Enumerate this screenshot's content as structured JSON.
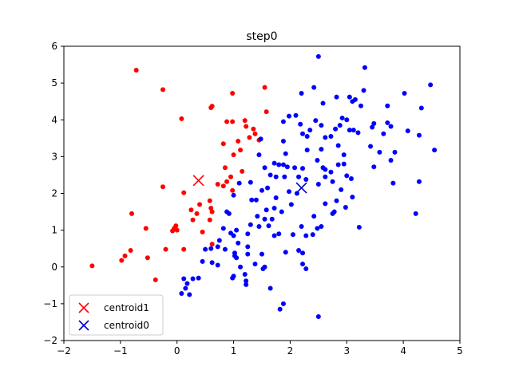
{
  "chart_data": {
    "type": "scatter",
    "title": "step0",
    "xlabel": "",
    "ylabel": "",
    "xlim": [
      -2,
      5
    ],
    "ylim": [
      -2,
      6
    ],
    "xticks": [
      -2,
      -1,
      0,
      1,
      2,
      3,
      4,
      5
    ],
    "yticks": [
      -2,
      -1,
      0,
      1,
      2,
      3,
      4,
      5,
      6
    ],
    "grid": false,
    "legend_position": "lower-left",
    "legend": [
      {
        "label": "centroid1",
        "color": "#ff0000",
        "marker": "x"
      },
      {
        "label": "centroid0",
        "color": "#0000cc",
        "marker": "x"
      }
    ],
    "centroids": [
      {
        "name": "centroid1",
        "x": 0.38,
        "y": 2.35,
        "color": "#ff0000"
      },
      {
        "name": "centroid0",
        "x": 2.2,
        "y": 2.15,
        "color": "#0000cc"
      }
    ],
    "series": [
      {
        "color": "#ff0000",
        "points": [
          [
            -0.72,
            5.35
          ],
          [
            -0.25,
            4.82
          ],
          [
            0.08,
            4.03
          ],
          [
            0.6,
            4.33
          ],
          [
            0.62,
            4.37
          ],
          [
            0.88,
            3.95
          ],
          [
            0.98,
            3.95
          ],
          [
            0.98,
            4.72
          ],
          [
            1.55,
            4.88
          ],
          [
            1.58,
            4.22
          ],
          [
            1.2,
            3.98
          ],
          [
            1.22,
            3.82
          ],
          [
            1.35,
            3.75
          ],
          [
            1.38,
            3.62
          ],
          [
            1.45,
            3.45
          ],
          [
            1.28,
            3.52
          ],
          [
            1.08,
            3.42
          ],
          [
            0.82,
            3.35
          ],
          [
            1.12,
            3.18
          ],
          [
            1.0,
            3.05
          ],
          [
            1.15,
            2.6
          ],
          [
            0.85,
            2.7
          ],
          [
            0.95,
            2.45
          ],
          [
            0.88,
            2.32
          ],
          [
            0.72,
            2.25
          ],
          [
            0.82,
            2.2
          ],
          [
            0.98,
            2.08
          ],
          [
            0.12,
            2.02
          ],
          [
            0.58,
            1.8
          ],
          [
            0.4,
            1.7
          ],
          [
            0.6,
            1.6
          ],
          [
            0.62,
            1.5
          ],
          [
            0.25,
            1.55
          ],
          [
            0.35,
            1.45
          ],
          [
            0.28,
            1.28
          ],
          [
            0.58,
            1.28
          ],
          [
            0.45,
            0.95
          ],
          [
            0.62,
            0.62
          ],
          [
            -0.25,
            2.18
          ],
          [
            -0.8,
            1.45
          ],
          [
            -0.02,
            1.12
          ],
          [
            -0.05,
            1.05
          ],
          [
            0.0,
            1.0
          ],
          [
            -0.08,
            0.98
          ],
          [
            -0.55,
            1.05
          ],
          [
            -0.2,
            0.48
          ],
          [
            -0.82,
            0.45
          ],
          [
            -0.92,
            0.3
          ],
          [
            -0.98,
            0.18
          ],
          [
            -0.52,
            0.25
          ],
          [
            -0.38,
            -0.35
          ],
          [
            -1.5,
            0.03
          ],
          [
            0.12,
            0.48
          ]
        ]
      },
      {
        "color": "#0000ff",
        "points": [
          [
            2.5,
            5.72
          ],
          [
            3.32,
            5.42
          ],
          [
            2.42,
            4.88
          ],
          [
            2.2,
            4.72
          ],
          [
            2.58,
            4.45
          ],
          [
            2.82,
            4.62
          ],
          [
            3.05,
            4.62
          ],
          [
            3.1,
            4.5
          ],
          [
            3.15,
            4.55
          ],
          [
            3.3,
            4.8
          ],
          [
            3.25,
            4.38
          ],
          [
            4.48,
            4.95
          ],
          [
            4.02,
            4.72
          ],
          [
            3.72,
            4.38
          ],
          [
            4.32,
            4.32
          ],
          [
            1.88,
            3.95
          ],
          [
            1.98,
            4.1
          ],
          [
            2.1,
            4.12
          ],
          [
            2.18,
            3.88
          ],
          [
            2.22,
            3.62
          ],
          [
            2.3,
            3.55
          ],
          [
            2.35,
            3.72
          ],
          [
            2.45,
            3.98
          ],
          [
            2.55,
            3.85
          ],
          [
            2.62,
            3.52
          ],
          [
            2.72,
            3.55
          ],
          [
            2.8,
            3.75
          ],
          [
            2.88,
            3.85
          ],
          [
            2.92,
            4.05
          ],
          [
            3.0,
            4.0
          ],
          [
            3.05,
            3.72
          ],
          [
            3.12,
            3.72
          ],
          [
            3.2,
            3.65
          ],
          [
            3.45,
            3.8
          ],
          [
            3.48,
            3.9
          ],
          [
            3.65,
            3.62
          ],
          [
            3.72,
            3.92
          ],
          [
            3.78,
            3.82
          ],
          [
            4.08,
            3.7
          ],
          [
            4.28,
            3.58
          ],
          [
            1.48,
            3.48
          ],
          [
            1.88,
            3.42
          ],
          [
            2.3,
            3.18
          ],
          [
            2.55,
            3.2
          ],
          [
            2.85,
            3.3
          ],
          [
            3.42,
            3.28
          ],
          [
            3.58,
            3.12
          ],
          [
            3.85,
            3.12
          ],
          [
            4.55,
            3.18
          ],
          [
            1.45,
            3.05
          ],
          [
            1.92,
            3.08
          ],
          [
            2.48,
            2.9
          ],
          [
            2.95,
            3.05
          ],
          [
            3.78,
            2.9
          ],
          [
            3.48,
            2.72
          ],
          [
            2.85,
            2.78
          ],
          [
            1.72,
            2.82
          ],
          [
            1.8,
            2.78
          ],
          [
            1.88,
            2.78
          ],
          [
            1.95,
            2.72
          ],
          [
            1.55,
            2.7
          ],
          [
            2.08,
            2.7
          ],
          [
            2.22,
            2.68
          ],
          [
            2.58,
            2.7
          ],
          [
            2.62,
            2.65
          ],
          [
            2.72,
            2.58
          ],
          [
            2.95,
            2.8
          ],
          [
            3.0,
            2.48
          ],
          [
            3.08,
            2.4
          ],
          [
            2.62,
            2.45
          ],
          [
            2.5,
            2.25
          ],
          [
            2.75,
            2.32
          ],
          [
            2.9,
            2.1
          ],
          [
            1.65,
            2.5
          ],
          [
            1.75,
            2.45
          ],
          [
            1.9,
            2.45
          ],
          [
            2.15,
            2.45
          ],
          [
            2.28,
            2.38
          ],
          [
            1.3,
            2.3
          ],
          [
            1.1,
            2.28
          ],
          [
            1.5,
            2.08
          ],
          [
            1.6,
            2.15
          ],
          [
            1.98,
            2.05
          ],
          [
            2.12,
            2.0
          ],
          [
            1.0,
            1.95
          ],
          [
            1.75,
            1.88
          ],
          [
            1.32,
            1.82
          ],
          [
            1.4,
            1.82
          ],
          [
            2.82,
            1.8
          ],
          [
            3.1,
            1.9
          ],
          [
            2.02,
            1.7
          ],
          [
            2.62,
            1.72
          ],
          [
            2.98,
            1.62
          ],
          [
            1.58,
            1.55
          ],
          [
            1.72,
            1.6
          ],
          [
            2.78,
            1.5
          ],
          [
            1.85,
            1.5
          ],
          [
            0.88,
            1.5
          ],
          [
            0.92,
            1.45
          ],
          [
            1.42,
            1.38
          ],
          [
            1.68,
            1.3
          ],
          [
            1.55,
            1.3
          ],
          [
            2.75,
            1.45
          ],
          [
            2.42,
            1.38
          ],
          [
            1.3,
            1.15
          ],
          [
            1.45,
            1.1
          ],
          [
            1.62,
            1.12
          ],
          [
            2.2,
            1.1
          ],
          [
            2.48,
            1.05
          ],
          [
            2.55,
            1.1
          ],
          [
            3.22,
            1.08
          ],
          [
            4.22,
            1.45
          ],
          [
            4.28,
            2.32
          ],
          [
            3.82,
            2.28
          ],
          [
            0.82,
            1.05
          ],
          [
            0.95,
            0.92
          ],
          [
            1.05,
            1.0
          ],
          [
            1.0,
            0.85
          ],
          [
            1.25,
            0.9
          ],
          [
            1.72,
            0.85
          ],
          [
            1.8,
            0.9
          ],
          [
            2.05,
            0.88
          ],
          [
            2.28,
            0.85
          ],
          [
            2.4,
            0.88
          ],
          [
            0.75,
            0.72
          ],
          [
            1.08,
            0.65
          ],
          [
            0.72,
            0.55
          ],
          [
            1.25,
            0.55
          ],
          [
            0.5,
            0.48
          ],
          [
            0.6,
            0.5
          ],
          [
            0.85,
            0.48
          ],
          [
            0.62,
            0.12
          ],
          [
            1.02,
            0.38
          ],
          [
            1.25,
            0.35
          ],
          [
            1.5,
            0.35
          ],
          [
            1.92,
            0.4
          ],
          [
            2.15,
            0.45
          ],
          [
            2.22,
            0.38
          ],
          [
            0.45,
            0.15
          ],
          [
            0.72,
            0.05
          ],
          [
            1.05,
            0.25
          ],
          [
            1.02,
            0.3
          ],
          [
            1.12,
            0.0
          ],
          [
            1.38,
            0.08
          ],
          [
            1.52,
            -0.05
          ],
          [
            1.55,
            0.0
          ],
          [
            1.2,
            -0.2
          ],
          [
            1.0,
            -0.25
          ],
          [
            0.98,
            -0.3
          ],
          [
            2.22,
            0.08
          ],
          [
            2.28,
            -0.05
          ],
          [
            0.12,
            -0.32
          ],
          [
            0.28,
            -0.32
          ],
          [
            0.38,
            -0.3
          ],
          [
            0.18,
            -0.45
          ],
          [
            0.15,
            -0.58
          ],
          [
            1.22,
            -0.38
          ],
          [
            1.22,
            -0.48
          ],
          [
            1.65,
            -0.58
          ],
          [
            0.08,
            -0.72
          ],
          [
            0.22,
            -0.75
          ],
          [
            1.88,
            -1.0
          ],
          [
            1.82,
            -1.15
          ],
          [
            2.5,
            -1.35
          ]
        ]
      }
    ]
  }
}
